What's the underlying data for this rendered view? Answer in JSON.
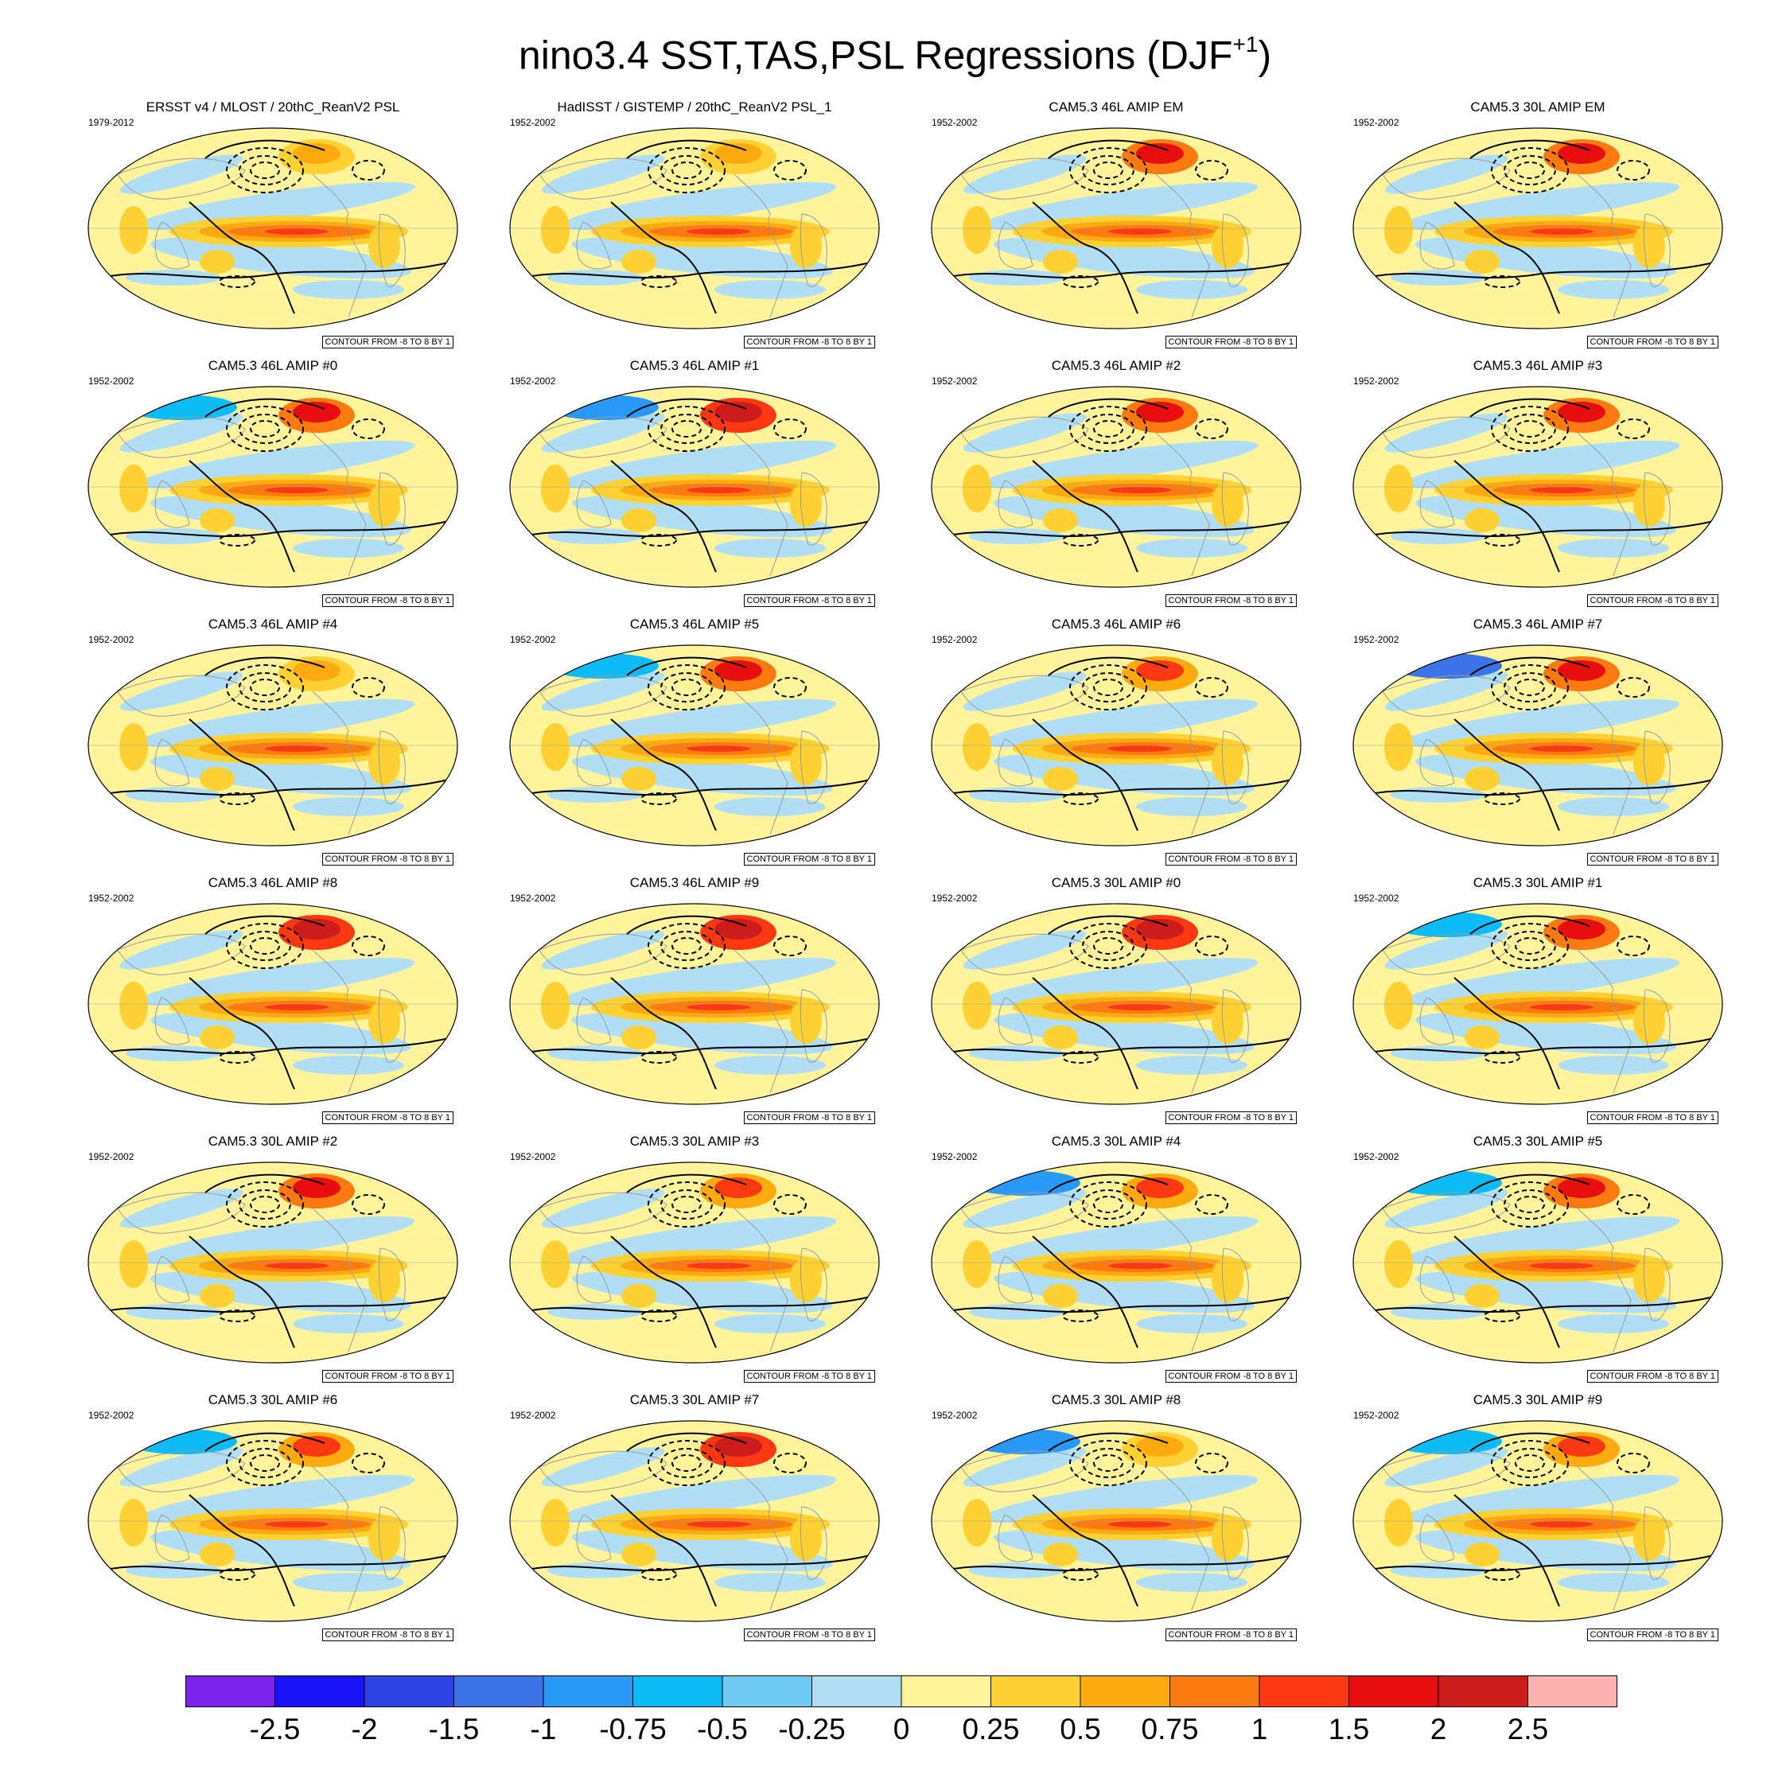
{
  "title": {
    "main": "nino3.4 SST,TAS,PSL Regressions (DJF",
    "sup": "+1",
    "close": ")"
  },
  "contour_label": "CONTOUR FROM -8 TO 8 BY 1",
  "colors": {
    "neg": [
      "#7d22ec",
      "#1a12fa",
      "#2d44e4",
      "#3a74e8",
      "#2a98f6",
      "#0dbcf6",
      "#6ec8f0",
      "#b0def4"
    ],
    "pos": [
      "#fff49c",
      "#fdd132",
      "#fdaa10",
      "#fd7a10",
      "#fc3812",
      "#e60e0e",
      "#cc1c1c",
      "#fdb2b2"
    ],
    "land_line": "#9a9a9a",
    "contour": "#000000"
  },
  "chart_data": {
    "type": "heatmap",
    "title": "nino3.4 SST,TAS,PSL Regressions (DJF+1)",
    "colorbar": {
      "levels": [
        -2.5,
        -2,
        -1.5,
        -1,
        -0.75,
        -0.5,
        -0.25,
        0,
        0.25,
        0.5,
        0.75,
        1,
        1.5,
        2,
        2.5
      ],
      "labels": [
        "-2.5",
        "-2",
        "-1.5",
        "-1",
        "-0.75",
        "-0.5",
        "-0.25",
        "0",
        "0.25",
        "0.5",
        "0.75",
        "1",
        "1.5",
        "2",
        "2.5"
      ]
    },
    "panels": [
      {
        "title": "ERSST v4 / MLOST / 20thC_ReanV2 PSL",
        "period": "1979-2012",
        "nh_warm": 0.6,
        "nh_cold": 0
      },
      {
        "title": "HadISST / GISTEMP / 20thC_ReanV2 PSL_1",
        "period": "1952-2002",
        "nh_warm": 0.6,
        "nh_cold": 0
      },
      {
        "title": "CAM5.3 46L AMIP EM",
        "period": "1952-2002",
        "nh_warm": 1.5,
        "nh_cold": 0
      },
      {
        "title": "CAM5.3 30L AMIP EM",
        "period": "1952-2002",
        "nh_warm": 1.5,
        "nh_cold": 0
      },
      {
        "title": "CAM5.3 46L AMIP #0",
        "period": "1952-2002",
        "nh_warm": 1.5,
        "nh_cold": -0.75
      },
      {
        "title": "CAM5.3 46L AMIP #1",
        "period": "1952-2002",
        "nh_warm": 2,
        "nh_cold": -1
      },
      {
        "title": "CAM5.3 46L AMIP #2",
        "period": "1952-2002",
        "nh_warm": 1.5,
        "nh_cold": 0
      },
      {
        "title": "CAM5.3 46L AMIP #3",
        "period": "1952-2002",
        "nh_warm": 1.5,
        "nh_cold": 0
      },
      {
        "title": "CAM5.3 46L AMIP #4",
        "period": "1952-2002",
        "nh_warm": 0.6,
        "nh_cold": 0
      },
      {
        "title": "CAM5.3 46L AMIP #5",
        "period": "1952-2002",
        "nh_warm": 1.5,
        "nh_cold": -0.75
      },
      {
        "title": "CAM5.3 46L AMIP #6",
        "period": "1952-2002",
        "nh_warm": 1,
        "nh_cold": 0
      },
      {
        "title": "CAM5.3 46L AMIP #7",
        "period": "1952-2002",
        "nh_warm": 1.5,
        "nh_cold": -1.5
      },
      {
        "title": "CAM5.3 46L AMIP #8",
        "period": "1952-2002",
        "nh_warm": 2,
        "nh_cold": 0
      },
      {
        "title": "CAM5.3 46L AMIP #9",
        "period": "1952-2002",
        "nh_warm": 2,
        "nh_cold": 0
      },
      {
        "title": "CAM5.3 30L AMIP #0",
        "period": "1952-2002",
        "nh_warm": 2,
        "nh_cold": 0
      },
      {
        "title": "CAM5.3 30L AMIP #1",
        "period": "1952-2002",
        "nh_warm": 1.5,
        "nh_cold": -0.75
      },
      {
        "title": "CAM5.3 30L AMIP #2",
        "period": "1952-2002",
        "nh_warm": 1.5,
        "nh_cold": 0
      },
      {
        "title": "CAM5.3 30L AMIP #3",
        "period": "1952-2002",
        "nh_warm": 1,
        "nh_cold": 0
      },
      {
        "title": "CAM5.3 30L AMIP #4",
        "period": "1952-2002",
        "nh_warm": 1,
        "nh_cold": -1
      },
      {
        "title": "CAM5.3 30L AMIP #5",
        "period": "1952-2002",
        "nh_warm": 1.5,
        "nh_cold": -0.75
      },
      {
        "title": "CAM5.3 30L AMIP #6",
        "period": "1952-2002",
        "nh_warm": 1,
        "nh_cold": -0.75
      },
      {
        "title": "CAM5.3 30L AMIP #7",
        "period": "1952-2002",
        "nh_warm": 2,
        "nh_cold": 0
      },
      {
        "title": "CAM5.3 30L AMIP #8",
        "period": "1952-2002",
        "nh_warm": 0.6,
        "nh_cold": -1
      },
      {
        "title": "CAM5.3 30L AMIP #9",
        "period": "1952-2002",
        "nh_warm": 1,
        "nh_cold": -0.75
      }
    ]
  }
}
